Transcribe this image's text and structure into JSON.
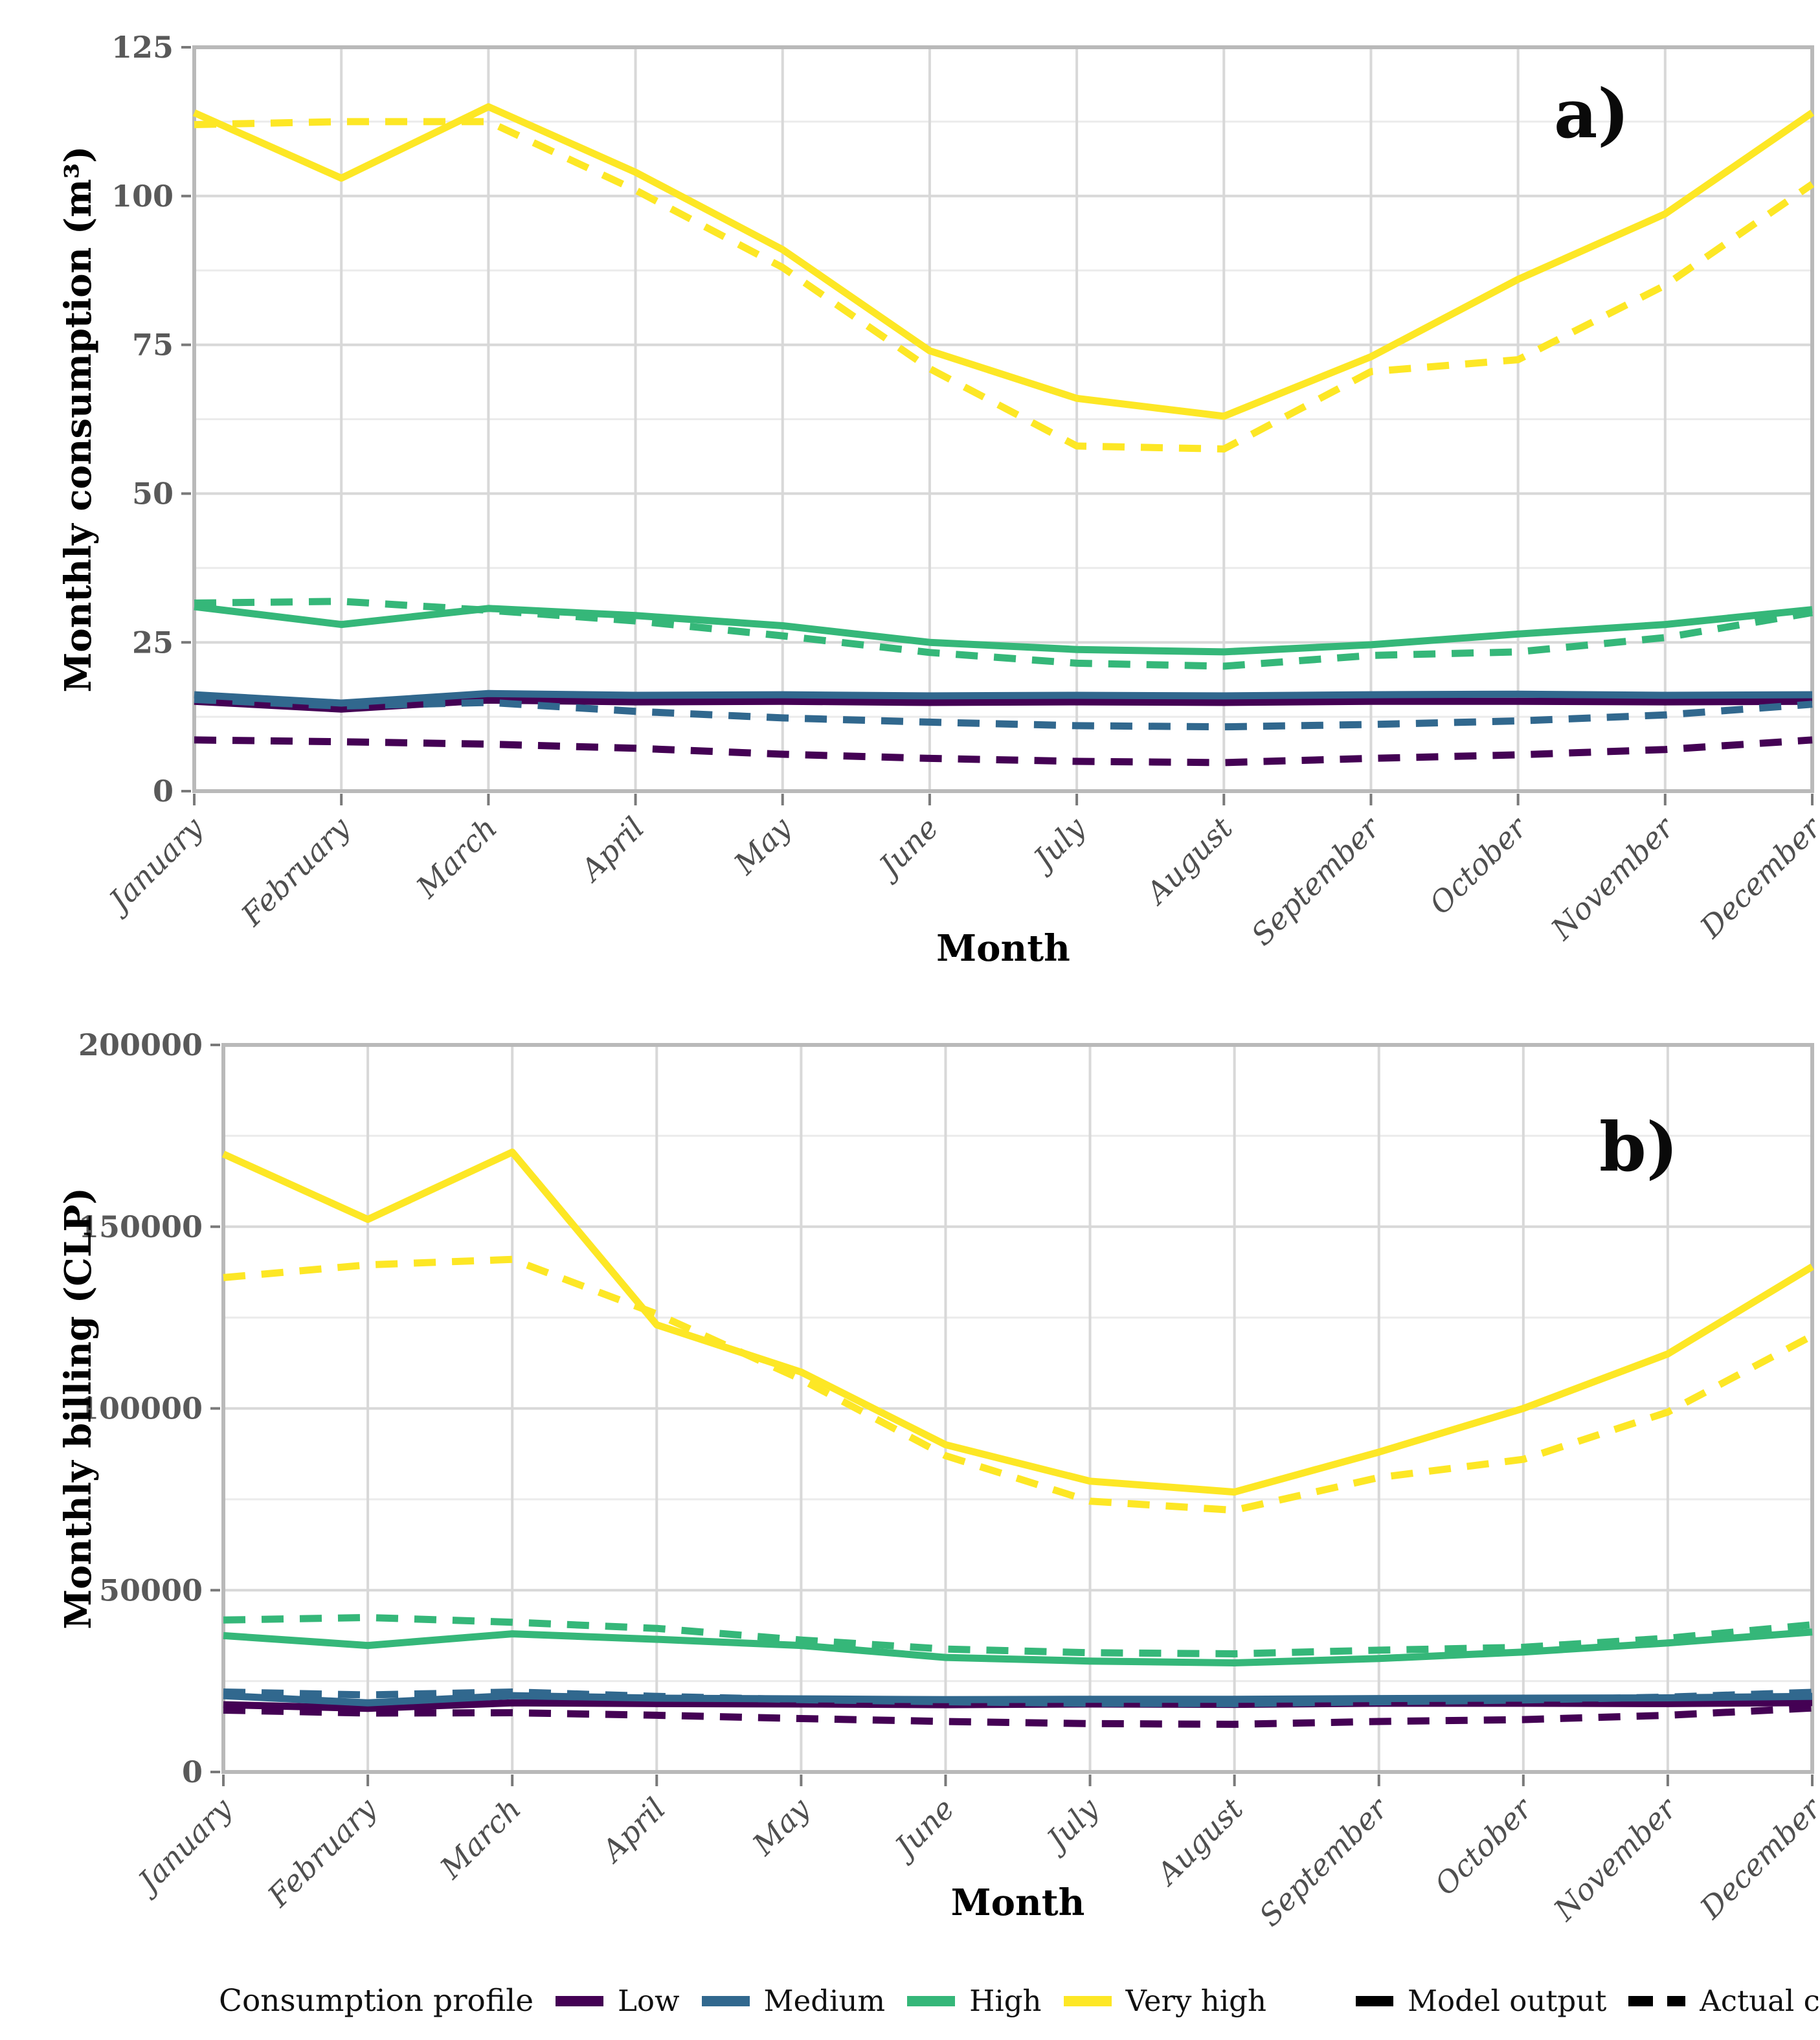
{
  "page": {
    "background": "#ffffff"
  },
  "colors": {
    "low": "#440154",
    "medium": "#31688E",
    "high": "#35B779",
    "very_high": "#FDE725",
    "linetype_key": "#000000",
    "grid_major": "#D8D8D8",
    "grid_minor": "#EBEBEB",
    "panel_border": "#B9B9B9",
    "tick_mark": "#7a7a7a",
    "tick_text": "#595959",
    "title_text": "#000000"
  },
  "legend": {
    "title": "Consumption profile",
    "profiles": [
      {
        "id": "low",
        "label": "Low"
      },
      {
        "id": "medium",
        "label": "Medium"
      },
      {
        "id": "high",
        "label": "High"
      },
      {
        "id": "very_high",
        "label": "Very high"
      }
    ],
    "linetypes": [
      {
        "id": "solid",
        "label": "Model output"
      },
      {
        "id": "dashed",
        "label": "Actual consumptions"
      }
    ]
  },
  "chart_data": [
    {
      "id": "a",
      "type": "line",
      "panel_label": "a)",
      "xlabel": "Month",
      "ylabel": "Monthly consumption (m³)",
      "ylim": [
        0,
        125
      ],
      "yticks": [
        0,
        25,
        50,
        75,
        100,
        125
      ],
      "grid": "major+minor",
      "legend_position": "bottom",
      "categories": [
        "January",
        "February",
        "March",
        "April",
        "May",
        "June",
        "July",
        "August",
        "September",
        "October",
        "November",
        "December"
      ],
      "series": [
        {
          "name": "Low — Model output",
          "profile": "low",
          "linetype": "solid",
          "values": [
            15.1,
            13.8,
            15.3,
            15.0,
            15.1,
            14.9,
            15.0,
            14.9,
            15.1,
            15.1,
            15.0,
            15.1
          ]
        },
        {
          "name": "Low — Actual consumptions",
          "profile": "low",
          "linetype": "dashed",
          "values": [
            8.6,
            8.3,
            7.9,
            7.2,
            6.2,
            5.5,
            5.0,
            4.8,
            5.5,
            6.1,
            7.0,
            8.6
          ]
        },
        {
          "name": "Medium — Model output",
          "profile": "medium",
          "linetype": "solid",
          "values": [
            16.2,
            14.8,
            16.4,
            16.1,
            16.2,
            16.0,
            16.1,
            16.0,
            16.2,
            16.3,
            16.1,
            16.2
          ]
        },
        {
          "name": "Medium — Actual consumptions",
          "profile": "medium",
          "linetype": "dashed",
          "values": [
            15.4,
            14.3,
            14.9,
            13.4,
            12.3,
            11.6,
            11.0,
            10.8,
            11.2,
            11.8,
            12.8,
            14.6
          ]
        },
        {
          "name": "High — Model output",
          "profile": "high",
          "linetype": "solid",
          "values": [
            31.0,
            28.0,
            30.7,
            29.5,
            27.8,
            25.0,
            23.8,
            23.4,
            24.6,
            26.4,
            28.0,
            30.5
          ]
        },
        {
          "name": "High — Actual consumptions",
          "profile": "high",
          "linetype": "dashed",
          "values": [
            31.6,
            31.9,
            30.4,
            28.6,
            26.1,
            23.3,
            21.5,
            21.0,
            22.8,
            23.4,
            25.8,
            30.0
          ]
        },
        {
          "name": "Very high — Model output",
          "profile": "very_high",
          "linetype": "solid",
          "values": [
            114,
            103,
            115,
            104,
            91,
            74,
            66,
            63,
            73,
            86,
            97,
            114
          ]
        },
        {
          "name": "Very high — Actual consumptions",
          "profile": "very_high",
          "linetype": "dashed",
          "values": [
            112,
            112.5,
            112.5,
            101,
            88,
            71,
            58,
            57.5,
            70.5,
            72.5,
            85,
            102
          ]
        }
      ]
    },
    {
      "id": "b",
      "type": "line",
      "panel_label": "b)",
      "xlabel": "Month",
      "ylabel": "Monthly billing (CLP)",
      "ylim": [
        0,
        200000
      ],
      "yticks": [
        0,
        50000,
        100000,
        150000,
        200000
      ],
      "grid": "major+minor",
      "legend_position": "bottom",
      "categories": [
        "January",
        "February",
        "March",
        "April",
        "May",
        "June",
        "July",
        "August",
        "September",
        "October",
        "November",
        "December"
      ],
      "series": [
        {
          "name": "Low — Model output",
          "profile": "low",
          "linetype": "solid",
          "values": [
            18500,
            17500,
            19000,
            18800,
            18700,
            18500,
            18700,
            18600,
            18900,
            18900,
            18800,
            19100
          ]
        },
        {
          "name": "Low — Actual consumptions",
          "profile": "low",
          "linetype": "dashed",
          "values": [
            17000,
            16200,
            16300,
            15600,
            14700,
            13900,
            13300,
            13100,
            13900,
            14400,
            15600,
            17600
          ]
        },
        {
          "name": "Medium — Model output",
          "profile": "medium",
          "linetype": "solid",
          "values": [
            21000,
            19000,
            21000,
            20300,
            20100,
            19900,
            20000,
            20000,
            20200,
            20300,
            20400,
            20800
          ]
        },
        {
          "name": "Medium — Actual consumptions",
          "profile": "medium",
          "linetype": "dashed",
          "values": [
            22000,
            21200,
            22000,
            20800,
            19900,
            19300,
            18900,
            18800,
            19300,
            19800,
            20600,
            21900
          ]
        },
        {
          "name": "High — Model output",
          "profile": "high",
          "linetype": "solid",
          "values": [
            37500,
            34800,
            38000,
            36500,
            34800,
            31500,
            30500,
            30000,
            31200,
            33000,
            35500,
            38500
          ]
        },
        {
          "name": "High — Actual consumptions",
          "profile": "high",
          "linetype": "dashed",
          "values": [
            41800,
            42500,
            41200,
            39500,
            36300,
            33800,
            32800,
            32500,
            33500,
            34300,
            36800,
            40500
          ]
        },
        {
          "name": "Very high — Model output",
          "profile": "very_high",
          "linetype": "solid",
          "values": [
            170000,
            152000,
            170500,
            123000,
            110000,
            90000,
            80000,
            77000,
            88000,
            100000,
            115000,
            139000
          ]
        },
        {
          "name": "Very high — Actual consumptions",
          "profile": "very_high",
          "linetype": "dashed",
          "values": [
            136000,
            139500,
            141000,
            126000,
            108000,
            87000,
            74500,
            72000,
            81000,
            86000,
            99000,
            120000
          ]
        }
      ]
    }
  ]
}
